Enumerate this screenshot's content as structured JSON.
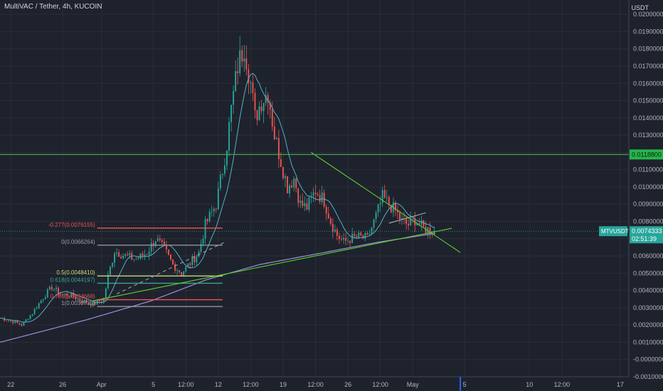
{
  "header": {
    "title": "MultiVAC / Tether, 4h, KUCOIN",
    "currency": "USDT"
  },
  "colors": {
    "background": "#1e222d",
    "grid": "#2a2e39",
    "up": "#26a69a",
    "down": "#ef5350",
    "ma_short": "#4fb3c9",
    "ma_long": "#9c8fd9",
    "trend": "#5cd130",
    "fib_red": "#f2534f",
    "fib_gray": "#9aa0a6",
    "fib_yellow": "#c8dc7a",
    "fib_teal": "#3aa68a",
    "resistance": "#4caf50"
  },
  "chart_data": {
    "type": "candlestick",
    "title": "MultiVAC / Tether, 4h, KUCOIN",
    "ylabel": "USDT",
    "ylim": [
      -0.001,
      0.0205
    ],
    "yticks": [
      "0.0200000",
      "0.0190000",
      "0.0180000",
      "0.0170000",
      "0.0160000",
      "0.0150000",
      "0.0140000",
      "0.0130000",
      "0.0120000",
      "0.0110000",
      "0.0100000",
      "0.0090000",
      "0.0080000",
      "0.0070000",
      "0.0060000",
      "0.0050000",
      "0.0040000",
      "0.0030000",
      "0.0020000",
      "0.0010000",
      "-0.0000000",
      "-0.0010000"
    ],
    "ytick_values": [
      0.02,
      0.019,
      0.018,
      0.017,
      0.016,
      0.015,
      0.014,
      0.013,
      0.012,
      0.011,
      0.01,
      0.009,
      0.008,
      0.007,
      0.006,
      0.005,
      0.004,
      0.003,
      0.002,
      0.001,
      0.0,
      -0.001
    ],
    "xticks": [
      {
        "label": "22",
        "idx": 5
      },
      {
        "label": "26",
        "idx": 29
      },
      {
        "label": "Apr",
        "idx": 47
      },
      {
        "label": "5",
        "idx": 71
      },
      {
        "label": "12:00",
        "idx": 86
      },
      {
        "label": "12",
        "idx": 101
      },
      {
        "label": "12:00",
        "idx": 116
      },
      {
        "label": "19",
        "idx": 131
      },
      {
        "label": "12:00",
        "idx": 146
      },
      {
        "label": "26",
        "idx": 161
      },
      {
        "label": "12:00",
        "idx": 176
      },
      {
        "label": "May",
        "idx": 191
      },
      {
        "label": "5",
        "idx": 215
      },
      {
        "label": "10",
        "idx": 245
      },
      {
        "label": "12:00",
        "idx": 260
      },
      {
        "label": "17",
        "idx": 287
      }
    ],
    "waypoints": [
      [
        0,
        0.0024
      ],
      [
        6,
        0.0022
      ],
      [
        10,
        0.002
      ],
      [
        15,
        0.0027
      ],
      [
        20,
        0.0036
      ],
      [
        24,
        0.0042
      ],
      [
        28,
        0.0038
      ],
      [
        33,
        0.0037
      ],
      [
        38,
        0.0034
      ],
      [
        43,
        0.0032
      ],
      [
        48,
        0.0035
      ],
      [
        50,
        0.0048
      ],
      [
        53,
        0.0063
      ],
      [
        58,
        0.006
      ],
      [
        63,
        0.0058
      ],
      [
        68,
        0.0062
      ],
      [
        72,
        0.007
      ],
      [
        76,
        0.0064
      ],
      [
        80,
        0.0055
      ],
      [
        84,
        0.005
      ],
      [
        88,
        0.0056
      ],
      [
        92,
        0.0062
      ],
      [
        95,
        0.0078
      ],
      [
        100,
        0.009
      ],
      [
        103,
        0.011
      ],
      [
        105,
        0.0125
      ],
      [
        107,
        0.0145
      ],
      [
        110,
        0.017
      ],
      [
        113,
        0.0182
      ],
      [
        116,
        0.016
      ],
      [
        118,
        0.014
      ],
      [
        121,
        0.015
      ],
      [
        124,
        0.0155
      ],
      [
        127,
        0.013
      ],
      [
        130,
        0.0115
      ],
      [
        133,
        0.01
      ],
      [
        136,
        0.0105
      ],
      [
        139,
        0.009
      ],
      [
        142,
        0.0088
      ],
      [
        146,
        0.0098
      ],
      [
        150,
        0.0092
      ],
      [
        153,
        0.008
      ],
      [
        156,
        0.0072
      ],
      [
        159,
        0.0068
      ],
      [
        162,
        0.007
      ],
      [
        166,
        0.0071
      ],
      [
        170,
        0.007
      ],
      [
        174,
        0.0083
      ],
      [
        177,
        0.0094
      ],
      [
        180,
        0.009
      ],
      [
        183,
        0.0086
      ],
      [
        186,
        0.008
      ],
      [
        189,
        0.0078
      ],
      [
        192,
        0.0081
      ],
      [
        196,
        0.0076
      ],
      [
        199,
        0.0075
      ],
      [
        201,
        0.00743
      ]
    ],
    "last_index": 201,
    "xlim": [
      0,
      291
    ],
    "levels": [
      {
        "name": "Resistance",
        "value": 0.01188,
        "label": "0.0118800",
        "color": "#4caf50"
      },
      {
        "name": "MTVUSDT",
        "value": 0.0074333,
        "label": "0.0074333",
        "countdown": "02:51:39",
        "color": "#26a69a"
      }
    ],
    "fib": [
      {
        "label": "-0.277(0.0076155)",
        "value": 0.0076155,
        "color": "#f2534f",
        "x0": 45,
        "x1": 103
      },
      {
        "label": "0(0.0066264)",
        "value": 0.0066264,
        "color": "#9aa0a6",
        "x0": 45,
        "x1": 103
      },
      {
        "label": "0.5(0.0048410)",
        "value": 0.004841,
        "color": "#c8dc7a",
        "x0": 45,
        "x1": 103
      },
      {
        "label": "0.618(0.0044197)",
        "value": 0.0044197,
        "color": "#3aa68a",
        "x0": 45,
        "x1": 103
      },
      {
        "label": "0.786(0.0034668)",
        "value": 0.0034668,
        "color": "#f2534f",
        "x0": 45,
        "x1": 103
      },
      {
        "label": "1(0.0030735)",
        "value": 0.0030735,
        "color": "#9aa0a6",
        "x0": 45,
        "x1": 103
      }
    ],
    "trendlines": [
      {
        "from": [
          43,
          0.0034
        ],
        "to": [
          209,
          0.0076
        ],
        "color": "#5cd130"
      },
      {
        "from": [
          144,
          0.012
        ],
        "to": [
          213,
          0.0062
        ],
        "color": "#5cd130"
      },
      {
        "from": [
          180,
          0.0079
        ],
        "to": [
          197,
          0.0085
        ],
        "color": "#a8acb8"
      },
      {
        "from": [
          54,
          0.0038
        ],
        "to": [
          104,
          0.0068
        ],
        "color": "#9aa0a6",
        "dashed": true
      }
    ],
    "ma_long": [
      [
        0,
        0.001
      ],
      [
        40,
        0.0023
      ],
      [
        70,
        0.0034
      ],
      [
        95,
        0.0046
      ],
      [
        120,
        0.0055
      ],
      [
        150,
        0.0062
      ],
      [
        175,
        0.0068
      ],
      [
        201,
        0.0073
      ]
    ]
  }
}
